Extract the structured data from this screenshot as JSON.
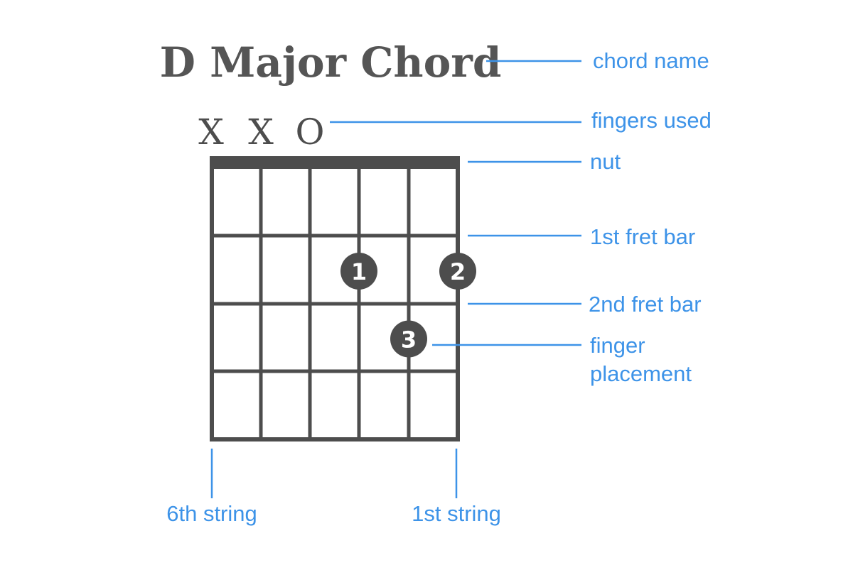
{
  "chord": {
    "name": "D Major Chord",
    "string_markers": [
      "X",
      "X",
      "O"
    ]
  },
  "fingers": [
    {
      "number": "1",
      "string": 3,
      "fret": 2
    },
    {
      "number": "2",
      "string": 1,
      "fret": 2
    },
    {
      "number": "3",
      "string": 2,
      "fret": 3
    }
  ],
  "annotations": {
    "chord_name": "chord name",
    "fingers_used": "fingers used",
    "nut": "nut",
    "fret1": "1st fret bar",
    "fret2": "2nd fret bar",
    "finger_placement_line1": "finger",
    "finger_placement_line2": "placement",
    "string6": "6th string",
    "string1": "1st string"
  },
  "colors": {
    "diagram": "#4d4d4d",
    "annotation": "#3d93e8",
    "finger_text": "#ffffff",
    "background": "#ffffff"
  }
}
